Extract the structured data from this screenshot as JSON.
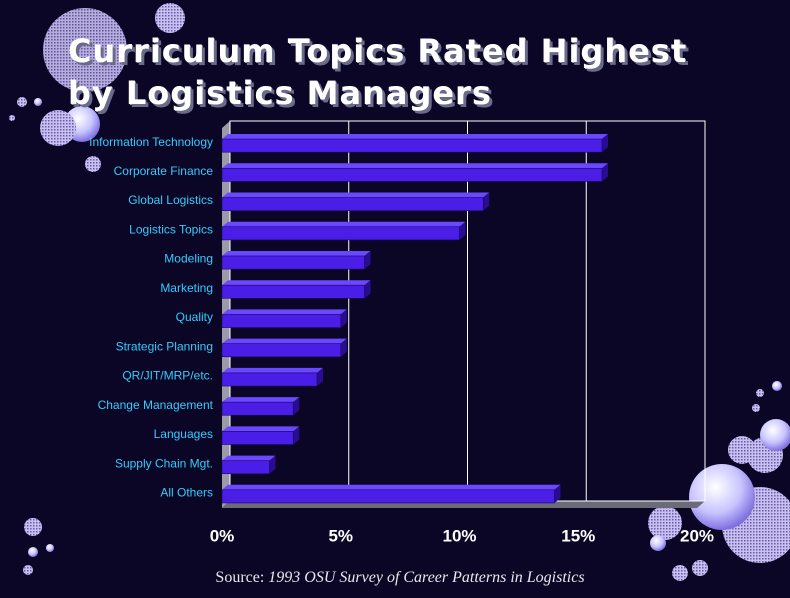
{
  "chart_data": {
    "type": "bar",
    "orientation": "horizontal",
    "title": "Curriculum Topics Rated Highest by Logistics Managers",
    "categories": [
      "Information Technology",
      "Corporate Finance",
      "Global Logistics",
      "Logistics Topics",
      "Modeling",
      "Marketing",
      "Quality",
      "Strategic Planning",
      "QR/JIT/MRP/etc.",
      "Change Management",
      "Languages",
      "Supply Chain Mgt.",
      "All Others"
    ],
    "values": [
      16,
      16,
      11,
      10,
      6,
      6,
      5,
      5,
      4,
      3,
      3,
      2,
      14
    ],
    "color": "#4a1ee6",
    "xlim": [
      0,
      20
    ],
    "xticks": [
      {
        "value": 0,
        "label": "0%"
      },
      {
        "value": 5,
        "label": "5%"
      },
      {
        "value": 10,
        "label": "10%"
      },
      {
        "value": 15,
        "label": "15%"
      },
      {
        "value": 20,
        "label": "20%"
      }
    ],
    "grid": true,
    "source_label": "Source:",
    "source": "1993 OSU Survey of Career Patterns in Logistics"
  }
}
